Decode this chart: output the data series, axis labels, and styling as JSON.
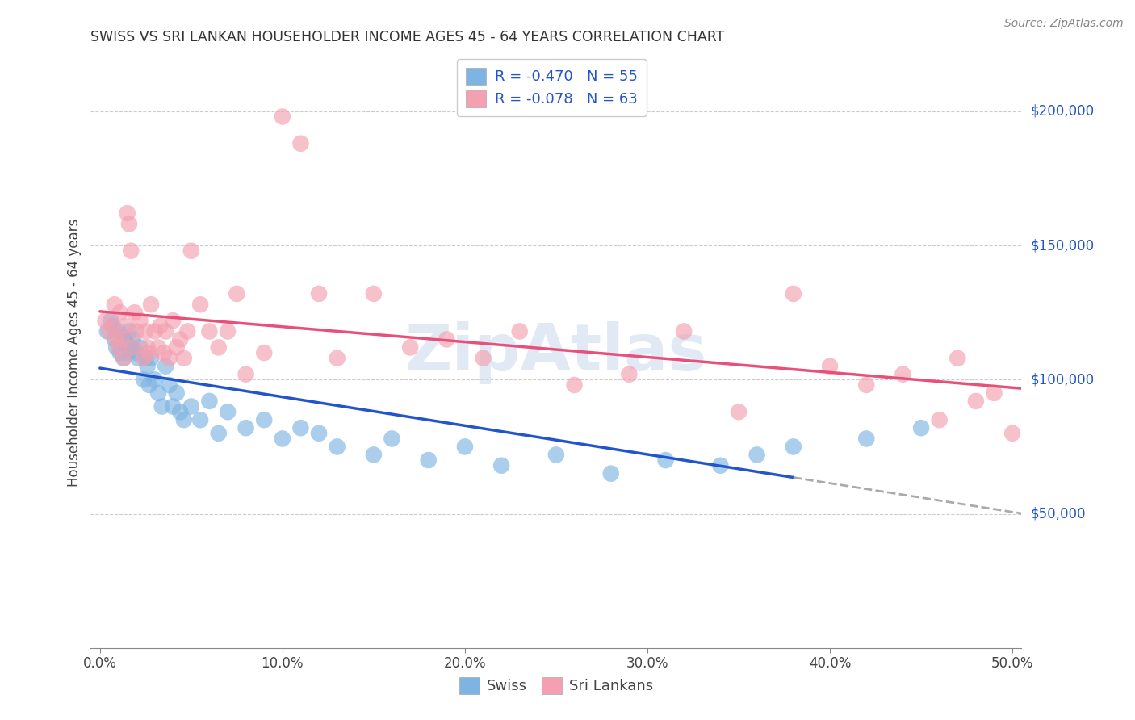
{
  "title": "SWISS VS SRI LANKAN HOUSEHOLDER INCOME AGES 45 - 64 YEARS CORRELATION CHART",
  "source": "Source: ZipAtlas.com",
  "ylabel": "Householder Income Ages 45 - 64 years",
  "xlabel_ticks": [
    "0.0%",
    "10.0%",
    "20.0%",
    "30.0%",
    "40.0%",
    "50.0%"
  ],
  "ytick_labels": [
    "$50,000",
    "$100,000",
    "$150,000",
    "$200,000"
  ],
  "ytick_values": [
    50000,
    100000,
    150000,
    200000
  ],
  "ymin": 0,
  "ymax": 220000,
  "xmin": -0.005,
  "xmax": 0.505,
  "legend_swiss_r": "-0.470",
  "legend_swiss_n": "55",
  "legend_sri_r": "-0.078",
  "legend_sri_n": "63",
  "swiss_color": "#7EB4E2",
  "sri_color": "#F4A0B0",
  "swiss_line_color": "#2255CC",
  "sri_line_color": "#E8507A",
  "dashed_line_color": "#AAAAAA",
  "grid_color": "#CCCCCC",
  "watermark": "ZipAtlas",
  "watermark_color": "#C8D8EC",
  "swiss_x": [
    0.004,
    0.006,
    0.007,
    0.008,
    0.009,
    0.01,
    0.011,
    0.012,
    0.013,
    0.014,
    0.015,
    0.016,
    0.017,
    0.018,
    0.02,
    0.021,
    0.022,
    0.024,
    0.025,
    0.026,
    0.027,
    0.028,
    0.03,
    0.032,
    0.034,
    0.036,
    0.038,
    0.04,
    0.042,
    0.044,
    0.046,
    0.05,
    0.055,
    0.06,
    0.065,
    0.07,
    0.08,
    0.09,
    0.1,
    0.11,
    0.12,
    0.13,
    0.15,
    0.16,
    0.18,
    0.2,
    0.22,
    0.25,
    0.28,
    0.31,
    0.34,
    0.36,
    0.38,
    0.42,
    0.45
  ],
  "swiss_y": [
    118000,
    122000,
    120000,
    115000,
    112000,
    118000,
    110000,
    116000,
    108000,
    114000,
    110000,
    118000,
    112000,
    115000,
    110000,
    108000,
    112000,
    100000,
    108000,
    105000,
    98000,
    108000,
    100000,
    95000,
    90000,
    105000,
    98000,
    90000,
    95000,
    88000,
    85000,
    90000,
    85000,
    92000,
    80000,
    88000,
    82000,
    85000,
    78000,
    82000,
    80000,
    75000,
    72000,
    78000,
    70000,
    75000,
    68000,
    72000,
    65000,
    70000,
    68000,
    72000,
    75000,
    78000,
    82000
  ],
  "sri_x": [
    0.003,
    0.005,
    0.007,
    0.008,
    0.009,
    0.01,
    0.011,
    0.012,
    0.013,
    0.014,
    0.015,
    0.016,
    0.017,
    0.018,
    0.019,
    0.02,
    0.022,
    0.024,
    0.025,
    0.026,
    0.027,
    0.028,
    0.03,
    0.032,
    0.033,
    0.035,
    0.036,
    0.038,
    0.04,
    0.042,
    0.044,
    0.046,
    0.048,
    0.05,
    0.055,
    0.06,
    0.065,
    0.07,
    0.075,
    0.08,
    0.09,
    0.1,
    0.11,
    0.12,
    0.13,
    0.15,
    0.17,
    0.19,
    0.21,
    0.23,
    0.26,
    0.29,
    0.32,
    0.35,
    0.38,
    0.4,
    0.42,
    0.44,
    0.46,
    0.47,
    0.48,
    0.49,
    0.5
  ],
  "sri_y": [
    122000,
    118000,
    120000,
    128000,
    115000,
    112000,
    125000,
    115000,
    108000,
    120000,
    162000,
    158000,
    148000,
    112000,
    125000,
    118000,
    122000,
    108000,
    118000,
    112000,
    110000,
    128000,
    118000,
    112000,
    120000,
    110000,
    118000,
    108000,
    122000,
    112000,
    115000,
    108000,
    118000,
    148000,
    128000,
    118000,
    112000,
    118000,
    132000,
    102000,
    110000,
    198000,
    188000,
    132000,
    108000,
    132000,
    112000,
    115000,
    108000,
    118000,
    98000,
    102000,
    118000,
    88000,
    132000,
    105000,
    98000,
    102000,
    85000,
    108000,
    92000,
    95000,
    80000
  ],
  "swiss_line_x0": 0.0,
  "swiss_line_x_solid_end": 0.38,
  "swiss_line_x_dashed_end": 0.505,
  "sri_line_x0": 0.0,
  "sri_line_x_end": 0.505
}
